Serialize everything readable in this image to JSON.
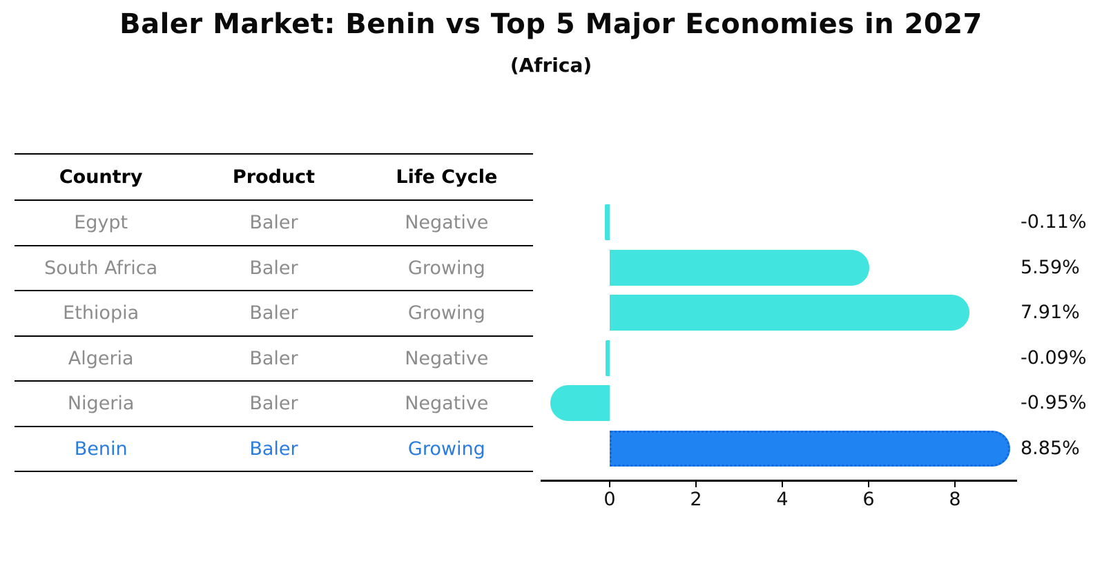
{
  "title": "Baler Market: Benin vs Top 5 Major Economies in 2027",
  "subtitle": "(Africa)",
  "colors": {
    "bar_default": "#42E4DF",
    "bar_highlight": "#1F83F2",
    "highlight_text": "#2A7CDE",
    "table_text": "#8C8C8C",
    "header_text": "#000000",
    "axis": "#000000"
  },
  "table": {
    "headers": [
      "Country",
      "Product",
      "Life Cycle"
    ],
    "rows": [
      {
        "country": "Egypt",
        "product": "Baler",
        "life_cycle": "Negative",
        "highlight": false
      },
      {
        "country": "South Africa",
        "product": "Baler",
        "life_cycle": "Growing",
        "highlight": false
      },
      {
        "country": "Ethiopia",
        "product": "Baler",
        "life_cycle": "Growing",
        "highlight": false
      },
      {
        "country": "Algeria",
        "product": "Baler",
        "life_cycle": "Negative",
        "highlight": false
      },
      {
        "country": "Nigeria",
        "product": "Baler",
        "life_cycle": "Negative",
        "highlight": false
      },
      {
        "country": "Benin",
        "product": "Baler",
        "life_cycle": "Growing",
        "highlight": true
      }
    ]
  },
  "chart_data": {
    "type": "bar",
    "orientation": "horizontal",
    "title": "Baler Market: Benin vs Top 5 Major Economies in 2027 (Africa)",
    "categories": [
      "Egypt",
      "South Africa",
      "Ethiopia",
      "Algeria",
      "Nigeria",
      "Benin"
    ],
    "values": [
      -0.11,
      5.59,
      7.91,
      -0.09,
      -0.95,
      8.85
    ],
    "value_labels": [
      "-0.11%",
      "5.59%",
      "7.91%",
      "-0.09%",
      "-0.95%",
      "8.85%"
    ],
    "unit": "percent",
    "highlight_index": 5,
    "x_ticks": [
      0,
      2,
      4,
      6,
      8
    ],
    "x_range": [
      -1.68,
      9.45
    ],
    "grid": false,
    "legend": false
  }
}
